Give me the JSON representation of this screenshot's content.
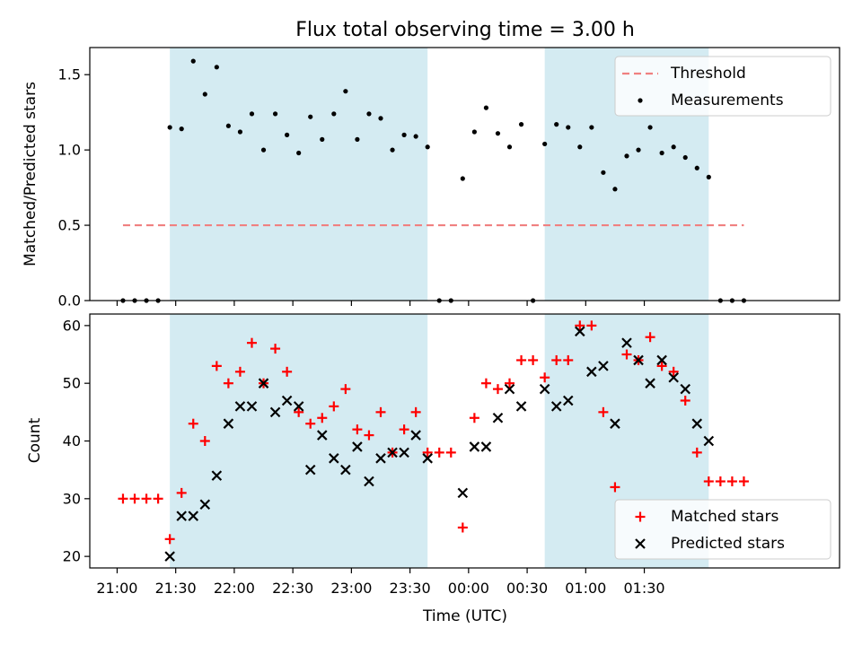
{
  "figure": {
    "title": "Flux total observing time = 3.00 h",
    "xlabel": "Time (UTC)",
    "x_ticks": [
      "21:00",
      "21:30",
      "22:00",
      "22:30",
      "23:00",
      "23:30",
      "00:00",
      "00:30",
      "01:00",
      "01:30"
    ]
  },
  "colors": {
    "shade": "#add8e6",
    "threshold": "#f08080",
    "matched": "#ff0000",
    "predicted": "#000000",
    "measurements": "#000000"
  },
  "chart_data": [
    {
      "type": "scatter",
      "title": "Flux total observing time = 3.00 h",
      "ylabel": "Matched/Predicted stars",
      "xlabel": "",
      "x_unit": "minutes since 21:00 UTC",
      "xlim": [
        -14,
        370
      ],
      "ylim": [
        0,
        1.68
      ],
      "y_ticks": [
        "0.0",
        "0.5",
        "1.0",
        "1.5"
      ],
      "legend_placement": "upper right",
      "shaded_intervals": [
        [
          27,
          159
        ],
        [
          219,
          303
        ]
      ],
      "threshold": {
        "name": "Threshold",
        "value": 0.5,
        "x_range": [
          3,
          321
        ]
      },
      "series": [
        {
          "name": "Measurements",
          "x": [
            3,
            9,
            15,
            21,
            27,
            33,
            39,
            45,
            51,
            57,
            63,
            69,
            75,
            81,
            87,
            93,
            99,
            105,
            111,
            117,
            123,
            129,
            135,
            141,
            147,
            153,
            159,
            165,
            171,
            177,
            183,
            189,
            195,
            201,
            207,
            213,
            219,
            225,
            231,
            237,
            243,
            249,
            255,
            261,
            267,
            273,
            279,
            285,
            291,
            297,
            303,
            309,
            315,
            321
          ],
          "y": [
            0,
            0,
            0,
            0,
            1.15,
            1.14,
            1.59,
            1.37,
            1.55,
            1.16,
            1.12,
            1.24,
            1.0,
            1.24,
            1.1,
            0.98,
            1.22,
            1.07,
            1.24,
            1.39,
            1.07,
            1.24,
            1.21,
            1.0,
            1.1,
            1.09,
            1.02,
            0,
            0,
            0.81,
            1.12,
            1.28,
            1.11,
            1.02,
            1.17,
            0,
            1.04,
            1.17,
            1.15,
            1.02,
            1.15,
            0.85,
            0.74,
            0.96,
            1.0,
            1.15,
            0.98,
            1.02,
            0.95,
            0.88,
            0.82,
            0,
            0,
            0
          ]
        }
      ]
    },
    {
      "type": "scatter",
      "ylabel": "Count",
      "xlabel": "Time (UTC)",
      "x_unit": "minutes since 21:00 UTC",
      "xlim": [
        -14,
        370
      ],
      "ylim": [
        18,
        62
      ],
      "y_ticks": [
        "20",
        "30",
        "40",
        "50",
        "60"
      ],
      "legend_placement": "lower right",
      "shaded_intervals": [
        [
          27,
          159
        ],
        [
          219,
          303
        ]
      ],
      "series": [
        {
          "name": "Matched stars",
          "x": [
            3,
            9,
            15,
            21,
            27,
            33,
            39,
            45,
            51,
            57,
            63,
            69,
            75,
            81,
            87,
            93,
            99,
            105,
            111,
            117,
            123,
            129,
            135,
            141,
            147,
            153,
            159,
            165,
            171,
            177,
            183,
            189,
            195,
            201,
            207,
            213,
            219,
            225,
            231,
            237,
            243,
            249,
            255,
            261,
            267,
            273,
            279,
            285,
            291,
            297,
            303,
            309,
            315,
            321
          ],
          "y": [
            30,
            30,
            30,
            30,
            23,
            31,
            43,
            40,
            53,
            50,
            52,
            57,
            50,
            56,
            52,
            45,
            43,
            44,
            46,
            49,
            42,
            41,
            45,
            38,
            42,
            45,
            38,
            38,
            38,
            25,
            44,
            50,
            49,
            50,
            54,
            54,
            51,
            54,
            54,
            60,
            60,
            45,
            32,
            55,
            54,
            58,
            53,
            52,
            47,
            38,
            33,
            33,
            33,
            33
          ]
        },
        {
          "name": "Predicted stars",
          "x": [
            27,
            33,
            39,
            45,
            51,
            57,
            63,
            69,
            75,
            81,
            87,
            93,
            99,
            105,
            111,
            117,
            123,
            129,
            135,
            141,
            147,
            153,
            159,
            177,
            183,
            189,
            195,
            201,
            207,
            219,
            225,
            231,
            237,
            243,
            249,
            255,
            261,
            267,
            273,
            279,
            285,
            291,
            297,
            303
          ],
          "y": [
            20,
            27,
            27,
            29,
            34,
            43,
            46,
            46,
            50,
            45,
            47,
            46,
            35,
            41,
            37,
            35,
            39,
            33,
            37,
            38,
            38,
            41,
            37,
            31,
            39,
            39,
            44,
            49,
            46,
            49,
            46,
            47,
            59,
            52,
            53,
            43,
            57,
            54,
            50,
            54,
            51,
            49,
            43,
            40
          ]
        }
      ]
    }
  ]
}
